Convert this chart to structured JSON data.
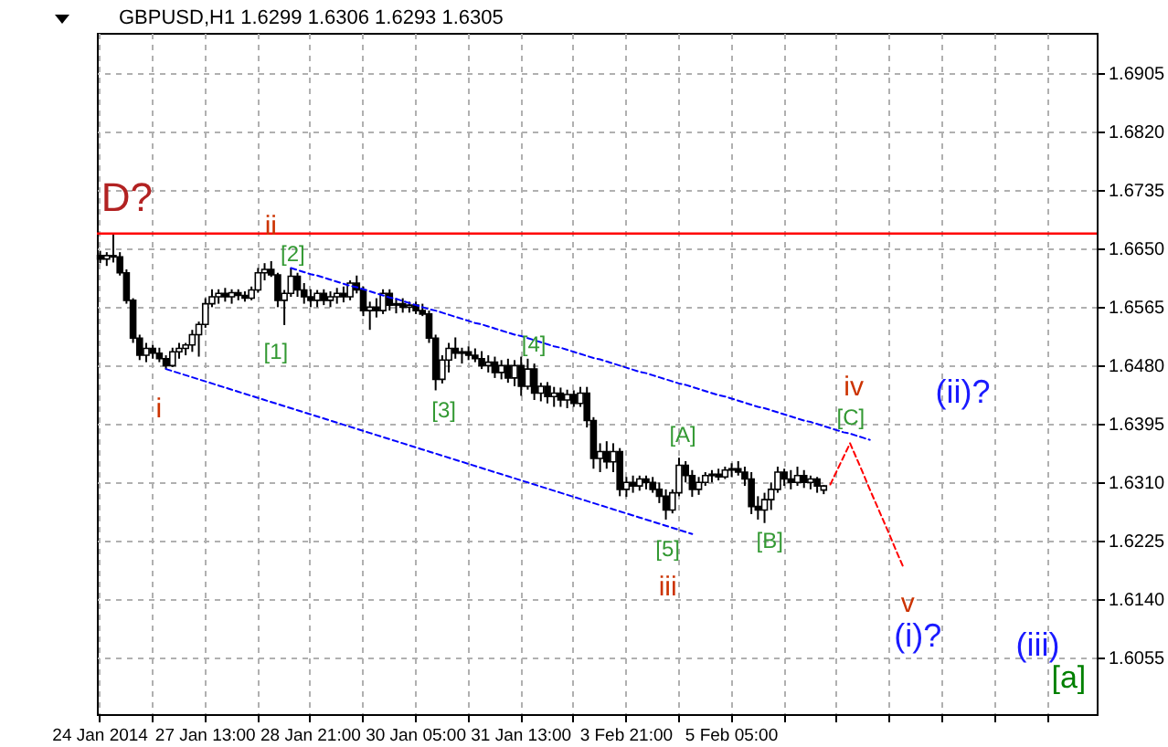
{
  "chart_data": {
    "type": "candlestick",
    "title": "GBPUSD,H1 1.6299 1.6306 1.6293 1.6305",
    "categories": [
      "24 Jan 2014",
      null,
      null,
      null,
      null,
      null,
      null,
      null,
      null,
      null,
      null,
      null,
      null,
      null,
      null,
      null,
      "27 Jan 13:00",
      null,
      null,
      null,
      null,
      null,
      null,
      null,
      null,
      null,
      null,
      null,
      null,
      null,
      null,
      null,
      "28 Jan 21:00",
      null,
      null,
      null,
      null,
      null,
      null,
      null,
      null,
      null,
      null,
      null,
      null,
      null,
      null,
      null,
      "30 Jan 05:00",
      null,
      null,
      null,
      null,
      null,
      null,
      null,
      null,
      null,
      null,
      null,
      null,
      null,
      null,
      null,
      "31 Jan 13:00",
      null,
      null,
      null,
      null,
      null,
      null,
      null,
      null,
      null,
      null,
      null,
      null,
      null,
      null,
      null,
      "3 Feb 21:00",
      null,
      null,
      null,
      null,
      null,
      null,
      null,
      null,
      null,
      null,
      null,
      null,
      null,
      null,
      null,
      "5 Feb 05:00",
      null,
      null,
      null,
      null,
      null,
      null,
      null,
      null,
      null,
      null,
      null,
      null,
      null,
      null,
      null,
      null,
      null,
      null,
      null,
      null,
      null,
      null,
      null,
      null,
      null,
      null,
      null,
      null,
      null,
      null,
      null,
      null,
      null,
      null,
      null,
      null,
      null,
      null,
      null,
      null,
      null,
      null,
      null,
      null,
      null,
      null,
      null,
      null,
      null,
      null,
      null,
      null,
      null,
      null,
      null
    ],
    "ohlc": [
      [
        1.664,
        1.6647,
        1.6629,
        1.6635
      ],
      [
        1.6635,
        1.6645,
        1.6625,
        1.664
      ],
      [
        1.664,
        1.6673,
        1.663,
        1.6638
      ],
      [
        1.6638,
        1.6645,
        1.6611,
        1.6615
      ],
      [
        1.6615,
        1.662,
        1.657,
        1.6575
      ],
      [
        1.6575,
        1.6578,
        1.6513,
        1.652
      ],
      [
        1.652,
        1.6525,
        1.6488,
        1.6495
      ],
      [
        1.6495,
        1.6513,
        1.6485,
        1.6505
      ],
      [
        1.6505,
        1.651,
        1.649,
        1.6498
      ],
      [
        1.6498,
        1.6506,
        1.6485,
        1.649
      ],
      [
        1.649,
        1.6495,
        1.6475,
        1.648
      ],
      [
        1.648,
        1.6506,
        1.6478,
        1.65
      ],
      [
        1.65,
        1.6513,
        1.649,
        1.6505
      ],
      [
        1.6505,
        1.6513,
        1.6495,
        1.651
      ],
      [
        1.651,
        1.6532,
        1.65,
        1.6525
      ],
      [
        1.6525,
        1.6544,
        1.6493,
        1.654
      ],
      [
        1.654,
        1.6578,
        1.6535,
        1.657
      ],
      [
        1.657,
        1.6591,
        1.6565,
        1.658
      ],
      [
        1.658,
        1.6591,
        1.657,
        1.6585
      ],
      [
        1.6585,
        1.6593,
        1.6573,
        1.658
      ],
      [
        1.658,
        1.6591,
        1.657,
        1.6586
      ],
      [
        1.6586,
        1.6591,
        1.6575,
        1.6582
      ],
      [
        1.6582,
        1.6588,
        1.6573,
        1.6578
      ],
      [
        1.6578,
        1.6595,
        1.6575,
        1.659
      ],
      [
        1.659,
        1.6622,
        1.6586,
        1.6615
      ],
      [
        1.6615,
        1.6629,
        1.6604,
        1.662
      ],
      [
        1.662,
        1.6632,
        1.6609,
        1.6612
      ],
      [
        1.6612,
        1.6615,
        1.6565,
        1.6575
      ],
      [
        1.6575,
        1.659,
        1.6539,
        1.6585
      ],
      [
        1.6585,
        1.6622,
        1.658,
        1.661
      ],
      [
        1.661,
        1.6615,
        1.658,
        1.659
      ],
      [
        1.659,
        1.66,
        1.657,
        1.658
      ],
      [
        1.658,
        1.6591,
        1.6565,
        1.6575
      ],
      [
        1.6575,
        1.659,
        1.6565,
        1.6585
      ],
      [
        1.6585,
        1.6591,
        1.6568,
        1.6575
      ],
      [
        1.6575,
        1.6588,
        1.6565,
        1.658
      ],
      [
        1.658,
        1.6593,
        1.657,
        1.6585
      ],
      [
        1.6585,
        1.6595,
        1.6572,
        1.658
      ],
      [
        1.658,
        1.6604,
        1.6575,
        1.66
      ],
      [
        1.66,
        1.6611,
        1.6585,
        1.659
      ],
      [
        1.659,
        1.6595,
        1.6552,
        1.656
      ],
      [
        1.656,
        1.6573,
        1.6532,
        1.6565
      ],
      [
        1.6565,
        1.6578,
        1.655,
        1.656
      ],
      [
        1.656,
        1.6591,
        1.6555,
        1.6585
      ],
      [
        1.6585,
        1.6591,
        1.656,
        1.6568
      ],
      [
        1.6568,
        1.6578,
        1.6556,
        1.657
      ],
      [
        1.657,
        1.6578,
        1.6557,
        1.6565
      ],
      [
        1.6565,
        1.6573,
        1.6557,
        1.6568
      ],
      [
        1.6568,
        1.6573,
        1.6555,
        1.656
      ],
      [
        1.656,
        1.657,
        1.6552,
        1.6555
      ],
      [
        1.6555,
        1.656,
        1.6513,
        1.652
      ],
      [
        1.652,
        1.6525,
        1.6444,
        1.646
      ],
      [
        1.646,
        1.6495,
        1.6454,
        1.6488
      ],
      [
        1.6488,
        1.6513,
        1.647,
        1.6505
      ],
      [
        1.6505,
        1.6521,
        1.649,
        1.6498
      ],
      [
        1.6498,
        1.6506,
        1.6483,
        1.65
      ],
      [
        1.65,
        1.6508,
        1.6488,
        1.6495
      ],
      [
        1.6495,
        1.6505,
        1.6485,
        1.649
      ],
      [
        1.649,
        1.6501,
        1.6475,
        1.648
      ],
      [
        1.648,
        1.6495,
        1.647,
        1.6485
      ],
      [
        1.6485,
        1.6493,
        1.6462,
        1.647
      ],
      [
        1.647,
        1.6488,
        1.646,
        1.648
      ],
      [
        1.648,
        1.649,
        1.6455,
        1.6462
      ],
      [
        1.6462,
        1.6488,
        1.645,
        1.648
      ],
      [
        1.648,
        1.6493,
        1.6436,
        1.645
      ],
      [
        1.645,
        1.649,
        1.6445,
        1.6475
      ],
      [
        1.6475,
        1.6483,
        1.643,
        1.644
      ],
      [
        1.644,
        1.6455,
        1.6428,
        1.645
      ],
      [
        1.645,
        1.6456,
        1.6425,
        1.6435
      ],
      [
        1.6435,
        1.6449,
        1.642,
        1.644
      ],
      [
        1.644,
        1.6448,
        1.642,
        1.643
      ],
      [
        1.643,
        1.6445,
        1.6418,
        1.6438
      ],
      [
        1.6438,
        1.6444,
        1.642,
        1.6425
      ],
      [
        1.6425,
        1.6449,
        1.642,
        1.644
      ],
      [
        1.644,
        1.6449,
        1.639,
        1.64
      ],
      [
        1.64,
        1.6405,
        1.633,
        1.6345
      ],
      [
        1.6345,
        1.6367,
        1.6325,
        1.6355
      ],
      [
        1.6355,
        1.637,
        1.633,
        1.634
      ],
      [
        1.634,
        1.6367,
        1.6325,
        1.6355
      ],
      [
        1.6355,
        1.636,
        1.629,
        1.63
      ],
      [
        1.63,
        1.6318,
        1.6289,
        1.631
      ],
      [
        1.631,
        1.632,
        1.6295,
        1.6305
      ],
      [
        1.6305,
        1.632,
        1.6298,
        1.6315
      ],
      [
        1.6315,
        1.632,
        1.63,
        1.631
      ],
      [
        1.631,
        1.6318,
        1.6295,
        1.63
      ],
      [
        1.63,
        1.631,
        1.628,
        1.629
      ],
      [
        1.629,
        1.63,
        1.6256,
        1.627
      ],
      [
        1.627,
        1.63,
        1.6265,
        1.6295
      ],
      [
        1.6295,
        1.6346,
        1.629,
        1.6335
      ],
      [
        1.6335,
        1.6341,
        1.631,
        1.632
      ],
      [
        1.632,
        1.6328,
        1.6289,
        1.63
      ],
      [
        1.63,
        1.6318,
        1.6292,
        1.631
      ],
      [
        1.631,
        1.6325,
        1.6305,
        1.632
      ],
      [
        1.632,
        1.6328,
        1.631,
        1.6322
      ],
      [
        1.6322,
        1.633,
        1.6313,
        1.6318
      ],
      [
        1.6318,
        1.6333,
        1.6315,
        1.6328
      ],
      [
        1.6328,
        1.6338,
        1.6318,
        1.633
      ],
      [
        1.633,
        1.6341,
        1.632,
        1.6325
      ],
      [
        1.6325,
        1.6333,
        1.6305,
        1.6315
      ],
      [
        1.6315,
        1.6325,
        1.6264,
        1.6275
      ],
      [
        1.6275,
        1.629,
        1.6256,
        1.627
      ],
      [
        1.627,
        1.6295,
        1.6251,
        1.6285
      ],
      [
        1.6285,
        1.631,
        1.627,
        1.63
      ],
      [
        1.63,
        1.6333,
        1.6295,
        1.6325
      ],
      [
        1.6325,
        1.633,
        1.6305,
        1.6315
      ],
      [
        1.6315,
        1.6328,
        1.63,
        1.631
      ],
      [
        1.631,
        1.6333,
        1.6305,
        1.632
      ],
      [
        1.632,
        1.6328,
        1.6302,
        1.631
      ],
      [
        1.631,
        1.632,
        1.63,
        1.6315
      ],
      [
        1.6315,
        1.6318,
        1.6295,
        1.6305
      ],
      [
        1.6299,
        1.6306,
        1.6293,
        1.6305
      ],
      null,
      null,
      null,
      null,
      null,
      null,
      null,
      null,
      null,
      null,
      null,
      null,
      null,
      null,
      null,
      null,
      null,
      null,
      null,
      null,
      null,
      null,
      null,
      null,
      null,
      null,
      null,
      null,
      null,
      null,
      null,
      null,
      null,
      null,
      null,
      null,
      null,
      null,
      null,
      null,
      null
    ],
    "color": "#000000",
    "series": [
      {
        "type": "line",
        "color": "#0000ff",
        "line_style": "dashed",
        "values": [
          null,
          null,
          null,
          null,
          null,
          null,
          null,
          null,
          null,
          null,
          null,
          null,
          null,
          null,
          null,
          null,
          null,
          null,
          null,
          null,
          null,
          null,
          null,
          null,
          null,
          null,
          null,
          null,
          null,
          1.6622,
          1.6619,
          1.6616,
          1.6613,
          1.6611,
          1.6608,
          1.6605,
          1.6602,
          1.6599,
          1.6596,
          1.6594,
          1.6591,
          1.6588,
          1.6585,
          1.6582,
          1.6579,
          1.6577,
          1.6574,
          1.6571,
          1.6568,
          1.6565,
          1.6562,
          1.656,
          1.6557,
          1.6554,
          1.6551,
          1.6548,
          1.6545,
          1.6542,
          1.654,
          1.6537,
          1.6534,
          1.6531,
          1.6528,
          1.6525,
          1.6523,
          1.652,
          1.6517,
          1.6514,
          1.6511,
          1.6508,
          1.6506,
          1.6503,
          1.65,
          1.6497,
          1.6494,
          1.6491,
          1.6489,
          1.6486,
          1.6483,
          1.648,
          1.6477,
          1.6474,
          1.6471,
          1.6469,
          1.6466,
          1.6463,
          1.646,
          1.6457,
          1.6454,
          1.6452,
          1.6449,
          1.6446,
          1.6443,
          1.644,
          1.6437,
          1.6435,
          1.6432,
          1.6429,
          1.6426,
          1.6423,
          1.642,
          1.6418,
          1.6415,
          1.6412,
          1.6409,
          1.6406,
          1.6403,
          1.64,
          1.6398,
          1.6395,
          1.6392,
          1.6389,
          1.6386,
          1.6383,
          1.6381,
          1.6378,
          1.6375,
          1.6372,
          null,
          null,
          null,
          null,
          null,
          null,
          null,
          null,
          null,
          null,
          null,
          null,
          null,
          null,
          null,
          null,
          null,
          null,
          null,
          null,
          null,
          null,
          null,
          null,
          null,
          null,
          null,
          null,
          null,
          null,
          null,
          null,
          null,
          null
        ]
      },
      {
        "type": "line",
        "color": "#0000ff",
        "line_style": "dashed",
        "values": [
          null,
          null,
          null,
          null,
          null,
          null,
          null,
          null,
          null,
          null,
          1.6475,
          1.6472,
          1.6469,
          1.6466,
          1.6463,
          1.646,
          1.6457,
          1.6454,
          1.6451,
          1.6448,
          1.6445,
          1.6442,
          1.6439,
          1.6436,
          1.6433,
          1.643,
          1.6427,
          1.6424,
          1.6421,
          1.6418,
          1.6415,
          1.6412,
          1.6409,
          1.6406,
          1.6403,
          1.64,
          1.6397,
          1.6394,
          1.6391,
          1.6388,
          1.6385,
          1.6382,
          1.6379,
          1.6376,
          1.6373,
          1.637,
          1.6367,
          1.6364,
          1.6361,
          1.6358,
          1.6355,
          1.6352,
          1.6349,
          1.6346,
          1.6343,
          1.634,
          1.6337,
          1.6334,
          1.6331,
          1.6328,
          1.6325,
          1.6322,
          1.6319,
          1.6316,
          1.6313,
          1.631,
          1.6307,
          1.6304,
          1.6301,
          1.6298,
          1.6295,
          1.6292,
          1.6289,
          1.6286,
          1.6283,
          1.628,
          1.6277,
          1.6274,
          1.6271,
          1.6268,
          1.6265,
          1.6262,
          1.6259,
          1.6256,
          1.6253,
          1.625,
          1.6247,
          1.6244,
          1.6241,
          1.6238,
          1.6235,
          null,
          null,
          null,
          null,
          null,
          null,
          null,
          null,
          null,
          null,
          null,
          null,
          null,
          null,
          null,
          null,
          null,
          null,
          null,
          null,
          null,
          null,
          null,
          null,
          null,
          null,
          null,
          null,
          null,
          null,
          null,
          null,
          null,
          null,
          null,
          null,
          null,
          null,
          null,
          null,
          null,
          null,
          null,
          null,
          null,
          null,
          null,
          null,
          null,
          null,
          null,
          null,
          null,
          null,
          null,
          null,
          null,
          null,
          null,
          null,
          null
        ]
      },
      {
        "type": "line",
        "color": "#ff0000",
        "line_style": "dashed",
        "values": [
          null,
          null,
          null,
          null,
          null,
          null,
          null,
          null,
          null,
          null,
          null,
          null,
          null,
          null,
          null,
          null,
          null,
          null,
          null,
          null,
          null,
          null,
          null,
          null,
          null,
          null,
          null,
          null,
          null,
          null,
          null,
          null,
          null,
          null,
          null,
          null,
          null,
          null,
          null,
          null,
          null,
          null,
          null,
          null,
          null,
          null,
          null,
          null,
          null,
          null,
          null,
          null,
          null,
          null,
          null,
          null,
          null,
          null,
          null,
          null,
          null,
          null,
          null,
          null,
          null,
          null,
          null,
          null,
          null,
          null,
          null,
          null,
          null,
          null,
          null,
          null,
          null,
          null,
          null,
          null,
          null,
          null,
          null,
          null,
          null,
          null,
          null,
          null,
          null,
          null,
          null,
          null,
          null,
          null,
          null,
          null,
          null,
          null,
          null,
          null,
          null,
          null,
          null,
          null,
          null,
          null,
          null,
          null,
          null,
          null,
          null,
          1.6307,
          1.6327,
          1.6347,
          1.6367,
          1.6345,
          1.6323,
          1.63,
          1.6278,
          1.6256,
          1.6234,
          1.6211,
          1.6189,
          null,
          null,
          null,
          null,
          null,
          null,
          null,
          null,
          null,
          null,
          null,
          null,
          null,
          null,
          null,
          null,
          null,
          null,
          null,
          null,
          null,
          null,
          null,
          null,
          null,
          null,
          null,
          null,
          null
        ]
      }
    ],
    "ref_lines": [
      {
        "axis": "y",
        "value": 1.6672,
        "color": "#ff0000"
      }
    ],
    "annotations": [
      "D?",
      "ii",
      "[2]",
      "[1]",
      "i",
      "[3]",
      "[4]",
      "[A]",
      "[5]",
      "iii",
      "[B]",
      "iv",
      "[C]",
      "(ii)?",
      "v",
      "(i)?",
      "(iii)",
      "[a]"
    ],
    "ylim": [
      1.5973,
      1.6964
    ],
    "yticks": [
      1.6055,
      {
        "value": 1.614,
        "label": "1.6140"
      },
      1.6225,
      {
        "value": 1.631,
        "label": "1.6310"
      },
      1.6395,
      {
        "value": 1.648,
        "label": "1.6480"
      },
      1.6565,
      {
        "value": 1.665,
        "label": "1.6650"
      },
      1.6735,
      {
        "value": 1.682,
        "label": "1.6820"
      },
      1.6905
    ],
    "grid": true
  }
}
